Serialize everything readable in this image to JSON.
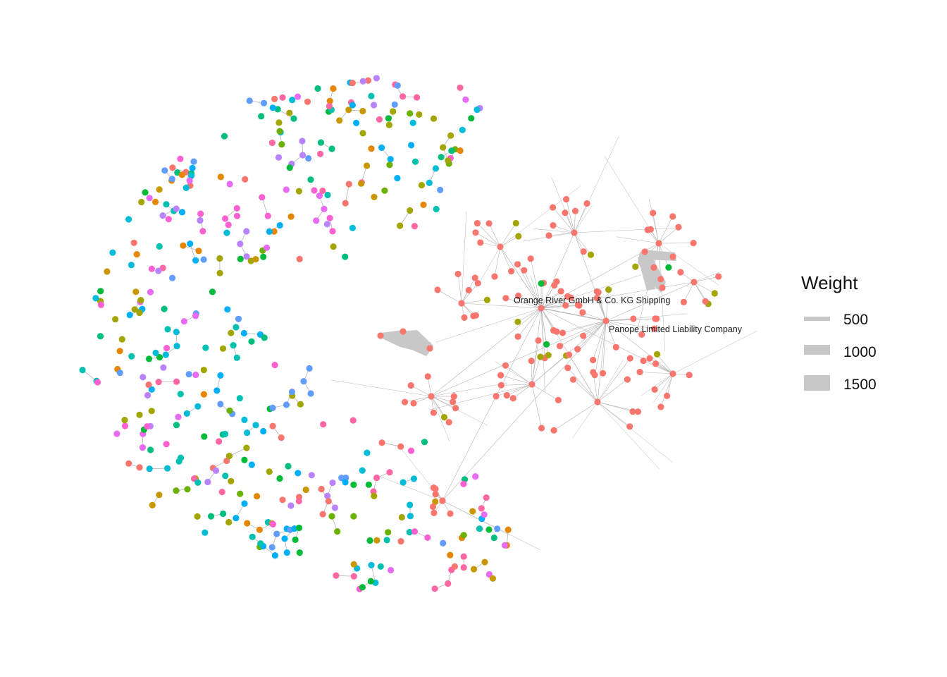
{
  "diagram": {
    "type": "network-graph",
    "labels": {
      "hub_primary": "Orange River   GmbH & Co. KG Shipping",
      "hub_secondary": "Panope Limited Liability Company"
    },
    "legend": {
      "title": "Weight",
      "entries": [
        {
          "label": "500",
          "weight": 500
        },
        {
          "label": "1000",
          "weight": 1000
        },
        {
          "label": "1500",
          "weight": 1500
        }
      ]
    },
    "colors": {
      "background": "#ffffff",
      "edge": "#b4b4b4",
      "heavy_edge": "#c8c8c8",
      "node_palette": [
        "#F8766D",
        "#E58700",
        "#C99800",
        "#A3A500",
        "#6BB100",
        "#00BA38",
        "#00BF7D",
        "#00C0AF",
        "#00BCD8",
        "#00B0F6",
        "#619CFF",
        "#B983FF",
        "#E76BF3",
        "#FD61D1",
        "#FF67A4"
      ],
      "cluster_node": "#F8766D",
      "olive_node": "#A3A500",
      "green_node": "#00BA38"
    }
  }
}
